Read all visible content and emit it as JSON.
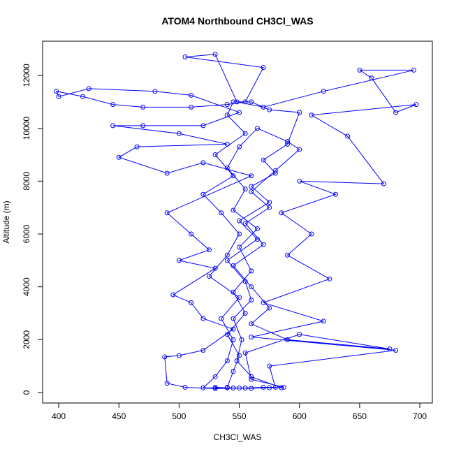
{
  "chart_data": {
    "type": "scatter",
    "lines": true,
    "title": "ATOM4 Northbound CH3Cl_WAS",
    "x_label": "CH3Cl_WAS",
    "y_label": "Altitude (m)",
    "color": "#0000ff",
    "xlim": [
      386.6,
      710.4
    ],
    "ylim": [
      -396,
      13295
    ],
    "xticks": [
      400,
      450,
      500,
      550,
      600,
      650,
      700
    ],
    "yticks": [
      0,
      2000,
      4000,
      6000,
      8000,
      10000,
      12000
    ],
    "x": [
      530,
      540,
      555,
      570,
      585,
      560,
      548,
      552,
      545,
      560,
      555,
      540,
      565,
      550,
      575,
      560,
      580,
      570,
      590,
      600,
      575,
      560,
      545,
      540,
      555,
      530,
      545,
      520,
      535,
      550,
      540,
      525,
      550,
      535,
      545,
      540,
      530,
      520,
      545,
      560,
      580,
      575,
      680,
      560,
      620,
      570,
      625,
      590,
      610,
      585,
      630,
      600,
      670,
      640,
      610,
      697,
      680,
      660,
      650,
      695,
      620,
      570,
      548,
      530,
      505,
      570,
      555,
      540,
      510,
      470,
      445,
      420,
      398,
      400,
      425,
      480,
      510,
      550,
      520,
      470,
      445,
      500,
      540,
      465,
      450,
      490,
      520,
      560,
      490,
      510,
      525,
      500,
      530,
      495,
      510,
      520,
      545,
      520,
      500,
      488,
      490,
      505,
      530,
      550,
      575,
      587,
      560,
      555,
      600,
      675,
      590,
      560,
      575,
      560,
      545,
      570,
      555,
      575,
      560,
      580,
      600,
      590,
      565,
      550,
      540,
      555,
      545,
      565,
      550,
      560,
      545,
      555,
      540,
      550,
      545,
      540
    ],
    "y": [
      200,
      180,
      170,
      200,
      180,
      600,
      1200,
      2000,
      2800,
      3500,
      4200,
      5000,
      5800,
      6500,
      7200,
      7800,
      8300,
      8800,
      9400,
      10600,
      10700,
      11000,
      11000,
      10500,
      9800,
      9000,
      8200,
      7500,
      6800,
      6000,
      5200,
      4400,
      3600,
      2800,
      2000,
      1200,
      600,
      180,
      170,
      160,
      200,
      1000,
      1600,
      2100,
      2700,
      3400,
      4300,
      5200,
      6000,
      6800,
      7500,
      8000,
      7900,
      9700,
      10500,
      10900,
      10600,
      11900,
      12200,
      12200,
      11400,
      10800,
      11000,
      12800,
      12700,
      12300,
      11000,
      10900,
      10800,
      10800,
      10900,
      11200,
      11400,
      11200,
      11500,
      11400,
      11250,
      10600,
      10100,
      10100,
      10100,
      9800,
      9400,
      9300,
      8900,
      8300,
      8700,
      8200,
      6800,
      6000,
      5400,
      5000,
      4700,
      3700,
      3400,
      2800,
      2400,
      1600,
      1400,
      1350,
      350,
      200,
      150,
      170,
      180,
      200,
      500,
      1500,
      2200,
      1650,
      2000,
      2600,
      3200,
      4000,
      4800,
      5600,
      6400,
      7000,
      7600,
      8400,
      9200,
      9500,
      10000,
      9300,
      8500,
      7700,
      6900,
      6200,
      5500,
      4600,
      3800,
      3000,
      2200,
      1400,
      800,
      200
    ]
  }
}
